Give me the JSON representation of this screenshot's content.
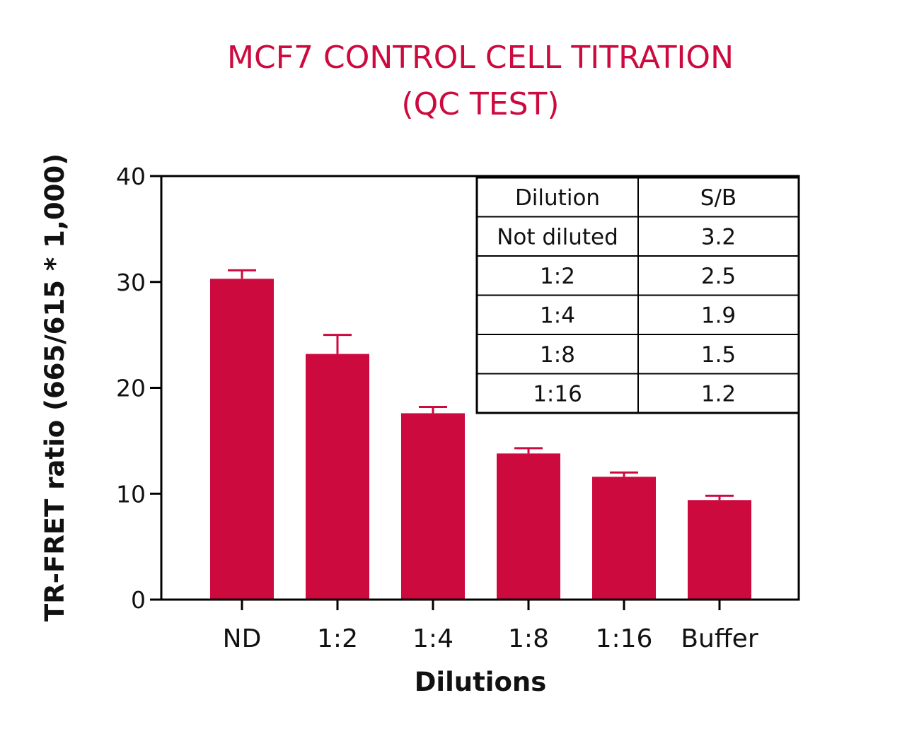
{
  "colors": {
    "bar": "#cc0a3e",
    "title": "#cc0a3e",
    "axis": "#000000",
    "text": "#111111"
  },
  "chart_data": {
    "type": "bar",
    "title": [
      "MCF7 CONTROL CELL TITRATION",
      "(QC TEST)"
    ],
    "xlabel": "Dilutions",
    "ylabel": "TR-FRET ratio (665/615 * 1,000)",
    "ylim": [
      0,
      40
    ],
    "yticks": [
      0,
      10,
      20,
      30,
      40
    ],
    "categories": [
      "ND",
      "1:2",
      "1:4",
      "1:8",
      "1:16",
      "Buffer"
    ],
    "values": [
      30.3,
      23.2,
      17.6,
      13.8,
      11.6,
      9.4
    ],
    "error_plus": [
      0.8,
      1.8,
      0.6,
      0.5,
      0.4,
      0.4
    ],
    "grid": false,
    "legend": "none"
  },
  "table": {
    "headers": [
      "Dilution",
      "S/B"
    ],
    "rows": [
      [
        "Not diluted",
        "3.2"
      ],
      [
        "1:2",
        "2.5"
      ],
      [
        "1:4",
        "1.9"
      ],
      [
        "1:8",
        "1.5"
      ],
      [
        "1:16",
        "1.2"
      ]
    ]
  }
}
